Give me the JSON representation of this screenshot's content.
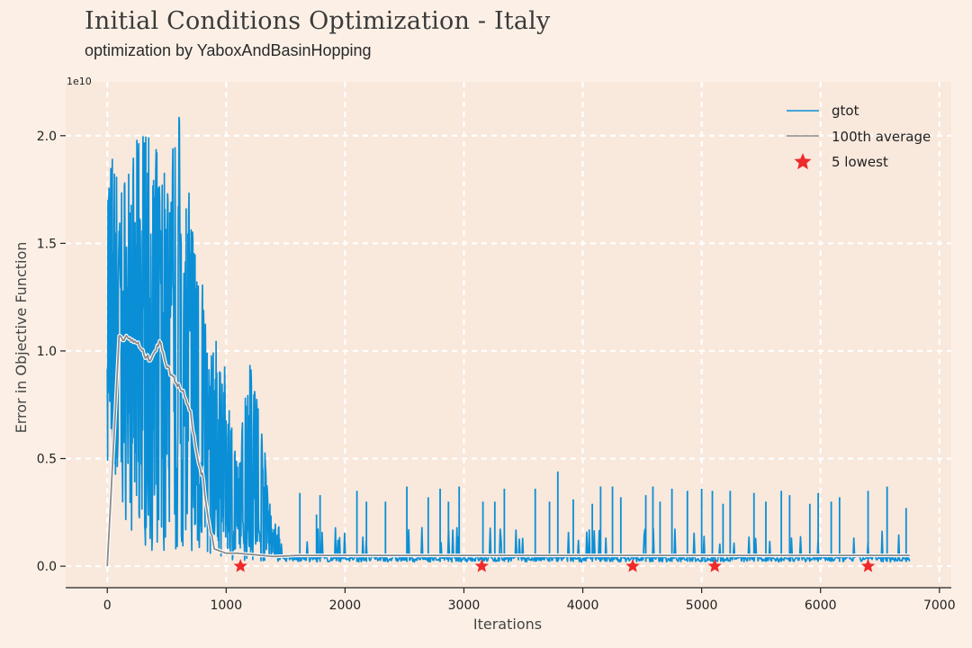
{
  "header": {
    "title": "Initial Conditions Optimization - Italy",
    "subtitle": "optimization by YaboxAndBasinHopping"
  },
  "colors": {
    "background": "#fcf0e6",
    "plot_background": "#f9e8dc",
    "grid": "#ffffff",
    "gtot": "#0a8fd6",
    "average": "#8a8a8a",
    "lowest": "#ee2a2a"
  },
  "chart_data": {
    "type": "line",
    "title": "Initial Conditions Optimization - Italy",
    "subtitle": "optimization by YaboxAndBasinHopping",
    "xlabel": "Iterations",
    "ylabel": "Error in Objective Function",
    "y_scale_label": "1e10",
    "xlim": [
      -350,
      7100
    ],
    "ylim": [
      -0.1,
      2.25
    ],
    "x_ticks": [
      0,
      1000,
      2000,
      3000,
      4000,
      5000,
      6000,
      7000
    ],
    "x_tick_labels": [
      "0",
      "1000",
      "2000",
      "3000",
      "4000",
      "5000",
      "6000",
      "7000"
    ],
    "y_ticks": [
      0.0,
      0.5,
      1.0,
      1.5,
      2.0
    ],
    "y_tick_labels": [
      "0.0",
      "0.5",
      "1.0",
      "1.5",
      "2.0"
    ],
    "grid": true,
    "legend_position": "top-right",
    "series": [
      {
        "name": "gtot",
        "kind": "line",
        "color": "#0a8fd6",
        "envelope_x": [
          0,
          100,
          200,
          300,
          400,
          500,
          600,
          700,
          800,
          850,
          900,
          1000,
          1100,
          1200,
          1300,
          1400,
          1600,
          2000,
          3000,
          4000,
          5000,
          6000,
          6750
        ],
        "envelope_upper": [
          2.07,
          1.8,
          1.9,
          2.07,
          1.95,
          1.9,
          2.13,
          1.7,
          1.45,
          0.9,
          1.1,
          0.9,
          0.45,
          1.1,
          0.65,
          0.2,
          0.18,
          0.18,
          0.18,
          0.18,
          0.18,
          0.18,
          0.18
        ],
        "envelope_lower": [
          0.37,
          0.3,
          0.15,
          0.1,
          0.06,
          0.06,
          0.06,
          0.06,
          0.06,
          0.06,
          0.04,
          0.03,
          0.03,
          0.02,
          0.02,
          0.02,
          0.02,
          0.02,
          0.02,
          0.02,
          0.02,
          0.02,
          0.02
        ],
        "spike_x": [
          1620,
          1760,
          1790,
          2100,
          2180,
          2340,
          2520,
          2700,
          2800,
          2870,
          2960,
          3160,
          3260,
          3340,
          3600,
          3720,
          3790,
          3920,
          4080,
          4150,
          4250,
          4320,
          4530,
          4590,
          4650,
          4750,
          4880,
          5000,
          5090,
          5180,
          5240,
          5440,
          5540,
          5670,
          5740,
          5910,
          5980,
          6090,
          6160,
          6400,
          6560,
          6720
        ],
        "spike_y": [
          0.34,
          0.24,
          0.33,
          0.35,
          0.3,
          0.3,
          0.37,
          0.32,
          0.36,
          0.3,
          0.37,
          0.3,
          0.3,
          0.36,
          0.36,
          0.3,
          0.44,
          0.31,
          0.29,
          0.37,
          0.37,
          0.32,
          0.33,
          0.37,
          0.3,
          0.36,
          0.35,
          0.36,
          0.35,
          0.29,
          0.35,
          0.34,
          0.3,
          0.35,
          0.33,
          0.29,
          0.34,
          0.3,
          0.32,
          0.35,
          0.37,
          0.27
        ]
      },
      {
        "name": "100th average",
        "kind": "line",
        "color": "#8a8a8a",
        "x": [
          0,
          100,
          150,
          200,
          250,
          300,
          350,
          400,
          450,
          500,
          550,
          600,
          650,
          700,
          750,
          800,
          850,
          900,
          950,
          1000,
          1100,
          1200,
          1300,
          1400,
          1600,
          1800,
          2000,
          3000,
          4000,
          5000,
          6000,
          6750
        ],
        "y": [
          0.0,
          1.07,
          1.06,
          1.05,
          1.04,
          0.99,
          0.96,
          1.0,
          1.04,
          0.93,
          0.88,
          0.84,
          0.8,
          0.72,
          0.52,
          0.42,
          0.22,
          0.08,
          0.07,
          0.06,
          0.06,
          0.055,
          0.05,
          0.045,
          0.05,
          0.05,
          0.05,
          0.05,
          0.05,
          0.05,
          0.05,
          0.05
        ]
      },
      {
        "name": "5 lowest",
        "kind": "scatter",
        "marker": "star",
        "color": "#ee2a2a",
        "x": [
          1120,
          3150,
          4420,
          5110,
          6400
        ],
        "y": [
          0.0,
          0.0,
          0.0,
          0.0,
          0.0
        ]
      }
    ]
  }
}
